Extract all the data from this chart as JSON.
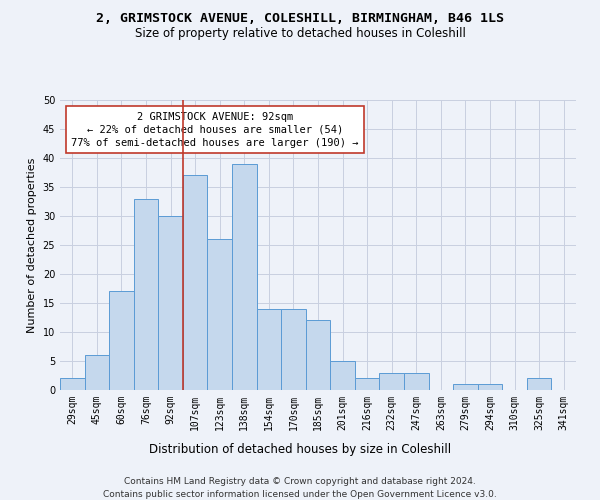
{
  "title_line1": "2, GRIMSTOCK AVENUE, COLESHILL, BIRMINGHAM, B46 1LS",
  "title_line2": "Size of property relative to detached houses in Coleshill",
  "xlabel": "Distribution of detached houses by size in Coleshill",
  "ylabel": "Number of detached properties",
  "bar_color": "#c5d8ed",
  "bar_edge_color": "#5b9bd5",
  "categories": [
    "29sqm",
    "45sqm",
    "60sqm",
    "76sqm",
    "92sqm",
    "107sqm",
    "123sqm",
    "138sqm",
    "154sqm",
    "170sqm",
    "185sqm",
    "201sqm",
    "216sqm",
    "232sqm",
    "247sqm",
    "263sqm",
    "279sqm",
    "294sqm",
    "310sqm",
    "325sqm",
    "341sqm"
  ],
  "values": [
    2,
    6,
    17,
    33,
    30,
    37,
    26,
    39,
    14,
    14,
    12,
    5,
    2,
    3,
    3,
    0,
    1,
    1,
    0,
    2,
    0
  ],
  "ylim": [
    0,
    50
  ],
  "yticks": [
    0,
    5,
    10,
    15,
    20,
    25,
    30,
    35,
    40,
    45,
    50
  ],
  "property_bin_index": 4,
  "annotation_text": "2 GRIMSTOCK AVENUE: 92sqm\n← 22% of detached houses are smaller (54)\n77% of semi-detached houses are larger (190) →",
  "vline_color": "#c0392b",
  "annotation_box_color": "#ffffff",
  "annotation_box_edge_color": "#c0392b",
  "background_color": "#eef2f9",
  "grid_color": "#c8cfe0",
  "footer_line1": "Contains HM Land Registry data © Crown copyright and database right 2024.",
  "footer_line2": "Contains public sector information licensed under the Open Government Licence v3.0.",
  "title_fontsize": 9.5,
  "subtitle_fontsize": 8.5,
  "axis_label_fontsize": 8,
  "tick_fontsize": 7,
  "annotation_fontsize": 7.5,
  "footer_fontsize": 6.5
}
